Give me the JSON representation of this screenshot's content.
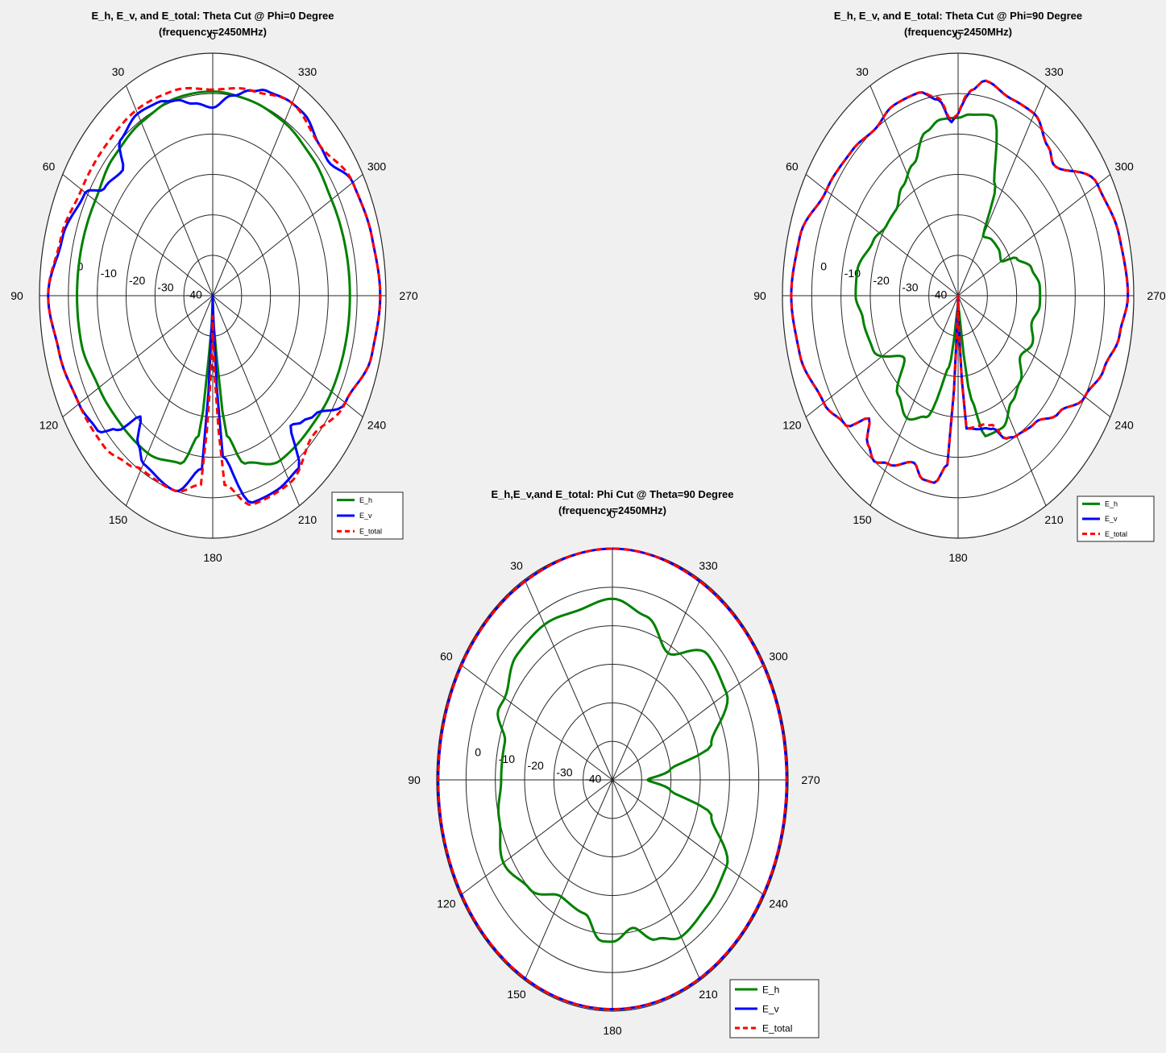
{
  "chart_data": [
    {
      "type": "polar-line",
      "title": "E_h, E_v, and E_total: Theta Cut @ Phi=0 Degree",
      "subtitle": "(frequency=2450MHz)",
      "angle_ticks": [
        "0",
        "30",
        "60",
        "90",
        "120",
        "150",
        "180",
        "210",
        "240",
        "270",
        "300",
        "330"
      ],
      "radial_ticks": [
        "0",
        "-10",
        "-20",
        "-30",
        "-40"
      ],
      "rlim": [
        -50,
        10
      ],
      "legend": {
        "position": "bottom-right",
        "entries": [
          "E_h",
          "E_v",
          "E_total"
        ]
      },
      "series": [
        {
          "name": "E_h",
          "color": "#008000",
          "style": "solid",
          "theta": [
            0,
            15,
            30,
            45,
            60,
            75,
            90,
            105,
            120,
            135,
            150,
            165,
            172,
            176,
            180,
            184,
            188,
            195,
            210,
            225,
            240,
            255,
            270,
            285,
            300,
            315,
            330,
            345,
            360
          ],
          "r": [
            0.5,
            0.5,
            -0.5,
            -1.5,
            -3,
            -3,
            -3,
            -3,
            -4.5,
            -5,
            -5,
            -7,
            -15,
            -40,
            -50,
            -40,
            -15,
            -7,
            -3,
            -3,
            -2.5,
            -2.5,
            -2.5,
            -2.5,
            -2.5,
            -1.5,
            -0.5,
            0,
            0.5
          ]
        },
        {
          "name": "E_v",
          "color": "#0000ff",
          "style": "solid",
          "theta": [
            0,
            8,
            15,
            22,
            30,
            40,
            45,
            55,
            60,
            75,
            90,
            105,
            120,
            130,
            135,
            140,
            145,
            150,
            165,
            175,
            178,
            180,
            182,
            185,
            195,
            205,
            215,
            220,
            225,
            230,
            240,
            255,
            270,
            285,
            300,
            310,
            315,
            325,
            330,
            340,
            345,
            352,
            360
          ],
          "r": [
            -3.5,
            -2,
            0,
            1.5,
            2,
            0,
            -6,
            -4,
            1,
            4,
            7,
            5,
            3.5,
            2,
            -3,
            -11,
            -5,
            -2,
            0,
            -7,
            -45,
            -50,
            -45,
            -10,
            3,
            3,
            2,
            -8,
            -6,
            -4,
            3,
            7,
            8,
            7,
            6,
            2,
            2.5,
            5,
            5,
            4,
            2.5,
            0,
            -3.5
          ]
        },
        {
          "name": "E_total",
          "color": "#ff0000",
          "style": "dashed",
          "theta": [
            0,
            15,
            30,
            45,
            60,
            75,
            90,
            105,
            120,
            135,
            145,
            150,
            165,
            175,
            178,
            180,
            182,
            185,
            195,
            210,
            225,
            240,
            255,
            270,
            285,
            300,
            315,
            330,
            345,
            360
          ],
          "r": [
            1,
            2.5,
            3,
            2.5,
            2.5,
            4.5,
            7,
            5,
            3.5,
            3,
            1,
            -0.5,
            0,
            -3,
            -30,
            -45,
            -30,
            -3,
            3.5,
            3.5,
            -1,
            3,
            7,
            8,
            7,
            6,
            2.5,
            5,
            2.5,
            1
          ]
        }
      ]
    },
    {
      "type": "polar-line",
      "title": "E_h, E_v, and E_total: Theta Cut @ Phi=90 Degree",
      "subtitle": "(frequency=2450MHz)",
      "angle_ticks": [
        "0",
        "30",
        "60",
        "90",
        "120",
        "150",
        "180",
        "210",
        "240",
        "270",
        "300",
        "330"
      ],
      "radial_ticks": [
        "0",
        "-10",
        "-20",
        "-30",
        "-40"
      ],
      "rlim": [
        -50,
        10
      ],
      "legend": {
        "position": "bottom-right",
        "entries": [
          "E_h",
          "E_v",
          "E_total"
        ]
      },
      "series": [
        {
          "name": "E_h",
          "color": "#008000",
          "style": "solid",
          "theta": [
            0,
            8,
            15,
            25,
            35,
            45,
            55,
            65,
            80,
            90,
            100,
            115,
            130,
            140,
            150,
            160,
            170,
            175,
            180,
            185,
            190,
            195,
            205,
            215,
            225,
            235,
            245,
            255,
            265,
            275,
            285,
            295,
            300,
            310,
            320,
            330,
            335,
            345,
            355,
            360
          ],
          "r": [
            -6,
            -6,
            -8,
            -14,
            -17,
            -20,
            -20,
            -18,
            -15,
            -15,
            -17,
            -18,
            -26,
            -18,
            -15,
            -18,
            -32,
            -46,
            -50,
            -46,
            -24,
            -14,
            -14,
            -18,
            -20,
            -24,
            -22,
            -24,
            -22,
            -22,
            -24,
            -28,
            -33,
            -32,
            -32,
            -33,
            -20,
            -4,
            -5,
            -6
          ]
        },
        {
          "name": "E_v",
          "color": "#0000ff",
          "style": "solid",
          "theta": [
            0,
            3,
            8,
            15,
            25,
            35,
            45,
            60,
            75,
            90,
            105,
            120,
            130,
            135,
            140,
            145,
            150,
            160,
            165,
            170,
            175,
            178,
            180,
            182,
            185,
            195,
            200,
            205,
            210,
            220,
            230,
            240,
            250,
            260,
            270,
            285,
            300,
            315,
            320,
            330,
            340,
            350,
            355,
            357,
            360
          ],
          "r": [
            -5,
            -7,
            -1,
            2,
            2,
            0,
            1,
            2,
            6,
            7,
            6,
            3,
            0,
            -7,
            -2,
            0,
            -2,
            -6,
            -3,
            -3,
            -8,
            -45,
            -50,
            -42,
            -17,
            -16,
            -15,
            -11,
            -10,
            -9,
            -5,
            0,
            3,
            6,
            8,
            7,
            5,
            -4,
            -2,
            2,
            2,
            4,
            1,
            -1,
            -5
          ]
        },
        {
          "name": "E_total",
          "color": "#ff0000",
          "style": "dashed",
          "theta": [
            0,
            3,
            8,
            15,
            25,
            35,
            45,
            60,
            75,
            90,
            105,
            120,
            130,
            135,
            140,
            145,
            150,
            160,
            165,
            170,
            175,
            178,
            180,
            182,
            185,
            195,
            200,
            205,
            210,
            220,
            230,
            240,
            250,
            260,
            270,
            285,
            300,
            315,
            320,
            330,
            340,
            350,
            355,
            357,
            360
          ],
          "r": [
            -5,
            -6.5,
            -0.5,
            2,
            2,
            0,
            1,
            2,
            6,
            7,
            6,
            3,
            0,
            -7,
            -2,
            0,
            -2,
            -6,
            -3,
            -3,
            -8,
            -43,
            -50,
            -40,
            -17,
            -17,
            -16,
            -11,
            -10,
            -9,
            -5,
            0,
            3,
            6,
            8,
            7,
            5,
            -4,
            -2,
            2,
            2,
            4,
            1,
            -0.5,
            -5
          ]
        }
      ]
    },
    {
      "type": "polar-line",
      "title": "E_h,E_v,and E_total: Phi Cut @ Theta=90 Degree",
      "subtitle": "(frequency=2450MHz)",
      "angle_ticks": [
        "0",
        "30",
        "60",
        "90",
        "120",
        "150",
        "180",
        "210",
        "240",
        "270",
        "300",
        "330"
      ],
      "radial_ticks": [
        "0",
        "-10",
        "-20",
        "-30",
        "-40"
      ],
      "rlim": [
        -50,
        10
      ],
      "legend": {
        "position": "bottom-right",
        "entries": [
          "E_h",
          "E_v",
          "E_total"
        ]
      },
      "series": [
        {
          "name": "E_h",
          "color": "#008000",
          "style": "solid",
          "theta": [
            0,
            15,
            30,
            45,
            60,
            65,
            75,
            90,
            105,
            120,
            135,
            150,
            165,
            175,
            180,
            190,
            200,
            210,
            225,
            240,
            255,
            262,
            270,
            278,
            285,
            300,
            315,
            330,
            345,
            360
          ],
          "r": [
            -3,
            -4.5,
            -3.5,
            -4,
            -7.5,
            -7,
            -12,
            -12,
            -10,
            -7,
            -10,
            -15,
            -14,
            -8,
            -8,
            -11,
            -6,
            -3,
            -4,
            -5,
            -15,
            -30,
            -38,
            -30,
            -15,
            -5,
            -4,
            -12,
            -6,
            -3
          ]
        },
        {
          "name": "E_v",
          "color": "#0000ff",
          "style": "solid",
          "theta": [
            0,
            30,
            60,
            90,
            120,
            150,
            180,
            210,
            240,
            270,
            300,
            330,
            360
          ],
          "r": [
            10,
            9.5,
            9.5,
            9.5,
            9.5,
            9.5,
            9.5,
            9.5,
            9.5,
            9.5,
            9.5,
            9.5,
            10
          ]
        },
        {
          "name": "E_total",
          "color": "#ff0000",
          "style": "dashed",
          "theta": [
            0,
            30,
            60,
            90,
            120,
            150,
            180,
            210,
            240,
            270,
            300,
            330,
            360
          ],
          "r": [
            10,
            9.5,
            9.5,
            9.5,
            9.5,
            9.5,
            9.5,
            9.5,
            9.5,
            9.5,
            9.5,
            9.5,
            10
          ]
        }
      ]
    }
  ]
}
